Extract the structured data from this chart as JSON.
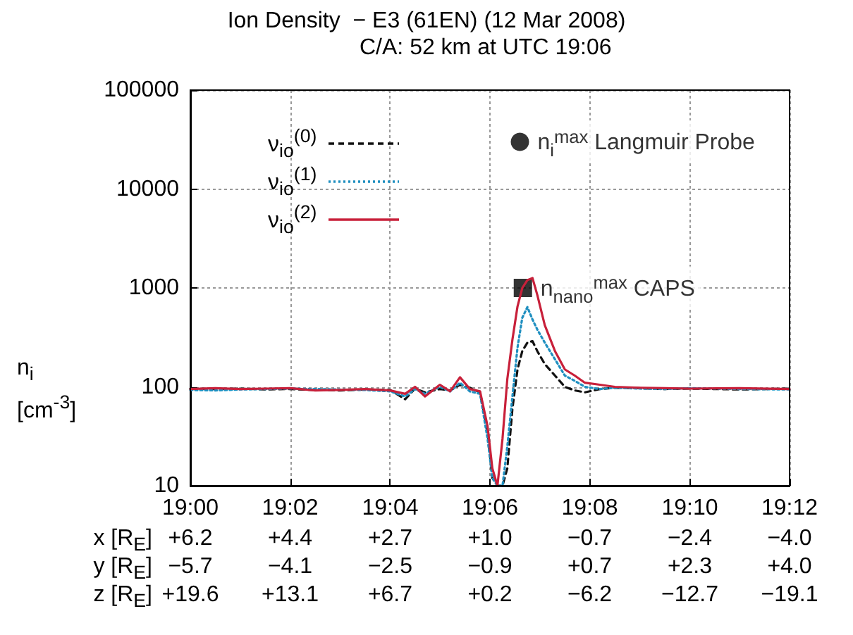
{
  "chart_data": {
    "type": "line",
    "title": "Ion Density  − E3 (61EN) (12 Mar 2008)",
    "subtitle": "C/A: 52 km at UTC 19:06",
    "ylabel": "n$_{i}$\n[cm$^{-3}$]",
    "x": [
      19,
      19.0083,
      19.0167,
      19.025,
      19.0333,
      19.0417,
      19.05,
      19.0583,
      19.0667,
      19.0717,
      19.075,
      19.0783,
      19.0833,
      19.0867,
      19.09,
      19.0933,
      19.0967,
      19.0992,
      19.1008,
      19.1025,
      19.1042,
      19.1058,
      19.1075,
      19.1092,
      19.1108,
      19.1125,
      19.1142,
      19.1158,
      19.1183,
      19.1217,
      19.125,
      19.1283,
      19.1317,
      19.1367,
      19.1417,
      19.15,
      19.1583,
      19.1667,
      19.1833,
      19.2
    ],
    "series": [
      {
        "name": "ν$_{io}$$^{(0)}$",
        "color": "#111111",
        "line_style": "dashed",
        "values": [
          96,
          95,
          96,
          94,
          95,
          93,
          92,
          94,
          93,
          75,
          96,
          88,
          95,
          92,
          105,
          98,
          88,
          35,
          12,
          10,
          10,
          15,
          60,
          150,
          230,
          280,
          290,
          230,
          170,
          130,
          100,
          92,
          88,
          95,
          98,
          97,
          95,
          96,
          94,
          96
        ]
      },
      {
        "name": "ν$_{io}$$^{(1)}$",
        "color": "#1f8fc0",
        "line_style": "dotted",
        "values": [
          93,
          92,
          94,
          95,
          96,
          95,
          94,
          93,
          90,
          80,
          95,
          85,
          100,
          90,
          110,
          90,
          85,
          30,
          12,
          10,
          10,
          25,
          80,
          250,
          500,
          640,
          480,
          380,
          280,
          190,
          130,
          115,
          100,
          95,
          98,
          96,
          95,
          97,
          95,
          94
        ]
      },
      {
        "name": "ν$_{io}$$^{(2)}$",
        "color": "#c8203a",
        "line_style": "solid",
        "values": [
          95,
          97,
          95,
          96,
          97,
          92,
          93,
          95,
          92,
          85,
          100,
          80,
          105,
          90,
          125,
          95,
          90,
          40,
          15,
          10,
          30,
          120,
          300,
          650,
          1000,
          1200,
          1260,
          850,
          420,
          230,
          150,
          130,
          110,
          105,
          100,
          98,
          97,
          96,
          97,
          95
        ]
      },
      {
        "name": "n$_{i}$$^{max}$ Langmuir Probe",
        "type": "scatter",
        "marker": "circle",
        "color": "#000000",
        "x": [
          19.11
        ],
        "values": [
          30000
        ]
      },
      {
        "name": "n$_{nano}$$^{max}$ CAPS",
        "type": "scatter",
        "marker": "square",
        "color": "#000000",
        "x": [
          19.111
        ],
        "values": [
          1000
        ]
      }
    ],
    "xlim": [
      19,
      19.2
    ],
    "xticks": [
      {
        "value": 19,
        "label": "19:00"
      },
      {
        "value": 19.0333,
        "label": "19:02"
      },
      {
        "value": 19.0667,
        "label": "19:04"
      },
      {
        "value": 19.1,
        "label": "19:06"
      },
      {
        "value": 19.1333,
        "label": "19:08"
      },
      {
        "value": 19.1667,
        "label": "19:10"
      },
      {
        "value": 19.2,
        "label": "19:12"
      }
    ],
    "ylim": [
      10,
      100000
    ],
    "yticks": [
      10,
      100,
      1000,
      10000,
      100000
    ],
    "log": true,
    "grid": true,
    "legend": "top left",
    "annotations": [
      "x [R$_{E}$]\t+6.2\t+4.4\t+2.7\t+1.0\t−0.7\t−2.4\t−4.0",
      "y [R$_{E}$]\t−5.7\t−4.1\t−2.5\t−0.9\t+0.7\t+2.3\t+4.0",
      "z [R$_{E}$]\t+19.6\t+13.1\t+6.7\t+0.2\t−6.2\t−12.7\t−19.1"
    ]
  }
}
